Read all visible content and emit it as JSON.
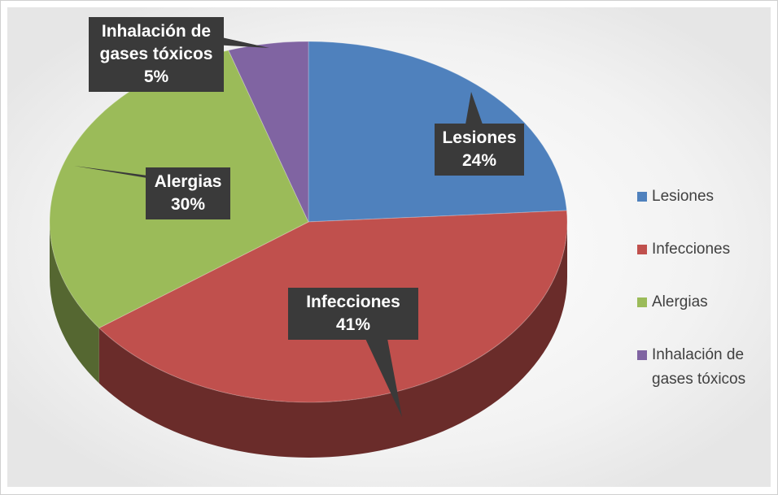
{
  "chart_data": {
    "type": "pie",
    "categories": [
      "Lesiones",
      "Infecciones",
      "Alergias",
      "Inhalación de gases tóxicos"
    ],
    "values": [
      24,
      41,
      30,
      5
    ],
    "value_labels": [
      "24%",
      "41%",
      "30%",
      "5%"
    ],
    "colors": [
      "#4f81bd",
      "#c0504d",
      "#9bbb59",
      "#8064a2"
    ],
    "legend": "right"
  }
}
